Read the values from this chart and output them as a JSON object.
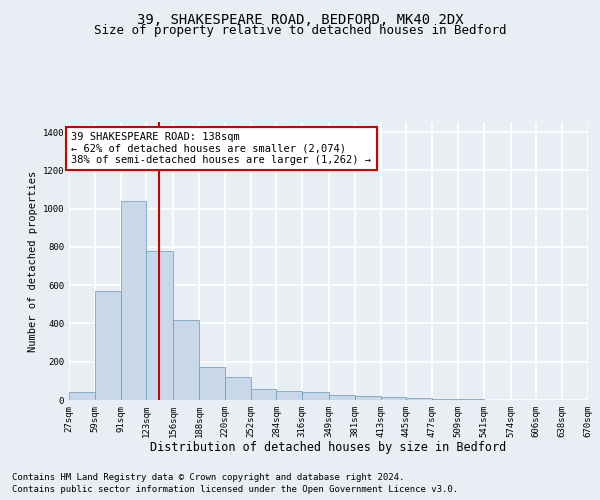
{
  "title1": "39, SHAKESPEARE ROAD, BEDFORD, MK40 2DX",
  "title2": "Size of property relative to detached houses in Bedford",
  "xlabel": "Distribution of detached houses by size in Bedford",
  "ylabel": "Number of detached properties",
  "footer1": "Contains HM Land Registry data © Crown copyright and database right 2024.",
  "footer2": "Contains public sector information licensed under the Open Government Licence v3.0.",
  "annotation_line1": "39 SHAKESPEARE ROAD: 138sqm",
  "annotation_line2": "← 62% of detached houses are smaller (2,074)",
  "annotation_line3": "38% of semi-detached houses are larger (1,262) →",
  "bar_color": "#c8d8e8",
  "bar_edge_color": "#6699bb",
  "ref_line_color": "#cc0000",
  "ref_line_x": 138,
  "bin_edges": [
    27,
    59,
    91,
    123,
    156,
    188,
    220,
    252,
    284,
    316,
    349,
    381,
    413,
    445,
    477,
    509,
    541,
    574,
    606,
    638,
    670
  ],
  "bar_heights": [
    40,
    570,
    1040,
    780,
    420,
    175,
    120,
    60,
    45,
    40,
    25,
    20,
    15,
    10,
    5,
    3,
    2,
    1,
    1,
    0
  ],
  "ylim": [
    0,
    1450
  ],
  "yticks": [
    0,
    200,
    400,
    600,
    800,
    1000,
    1200,
    1400
  ],
  "background_color": "#e8eef4",
  "plot_bg_color": "#e8eef4",
  "grid_color": "#ffffff",
  "title1_fontsize": 10,
  "title2_fontsize": 9,
  "xlabel_fontsize": 8.5,
  "ylabel_fontsize": 7.5,
  "tick_fontsize": 6.5,
  "footer_fontsize": 6.5,
  "annotation_fontsize": 7.5
}
